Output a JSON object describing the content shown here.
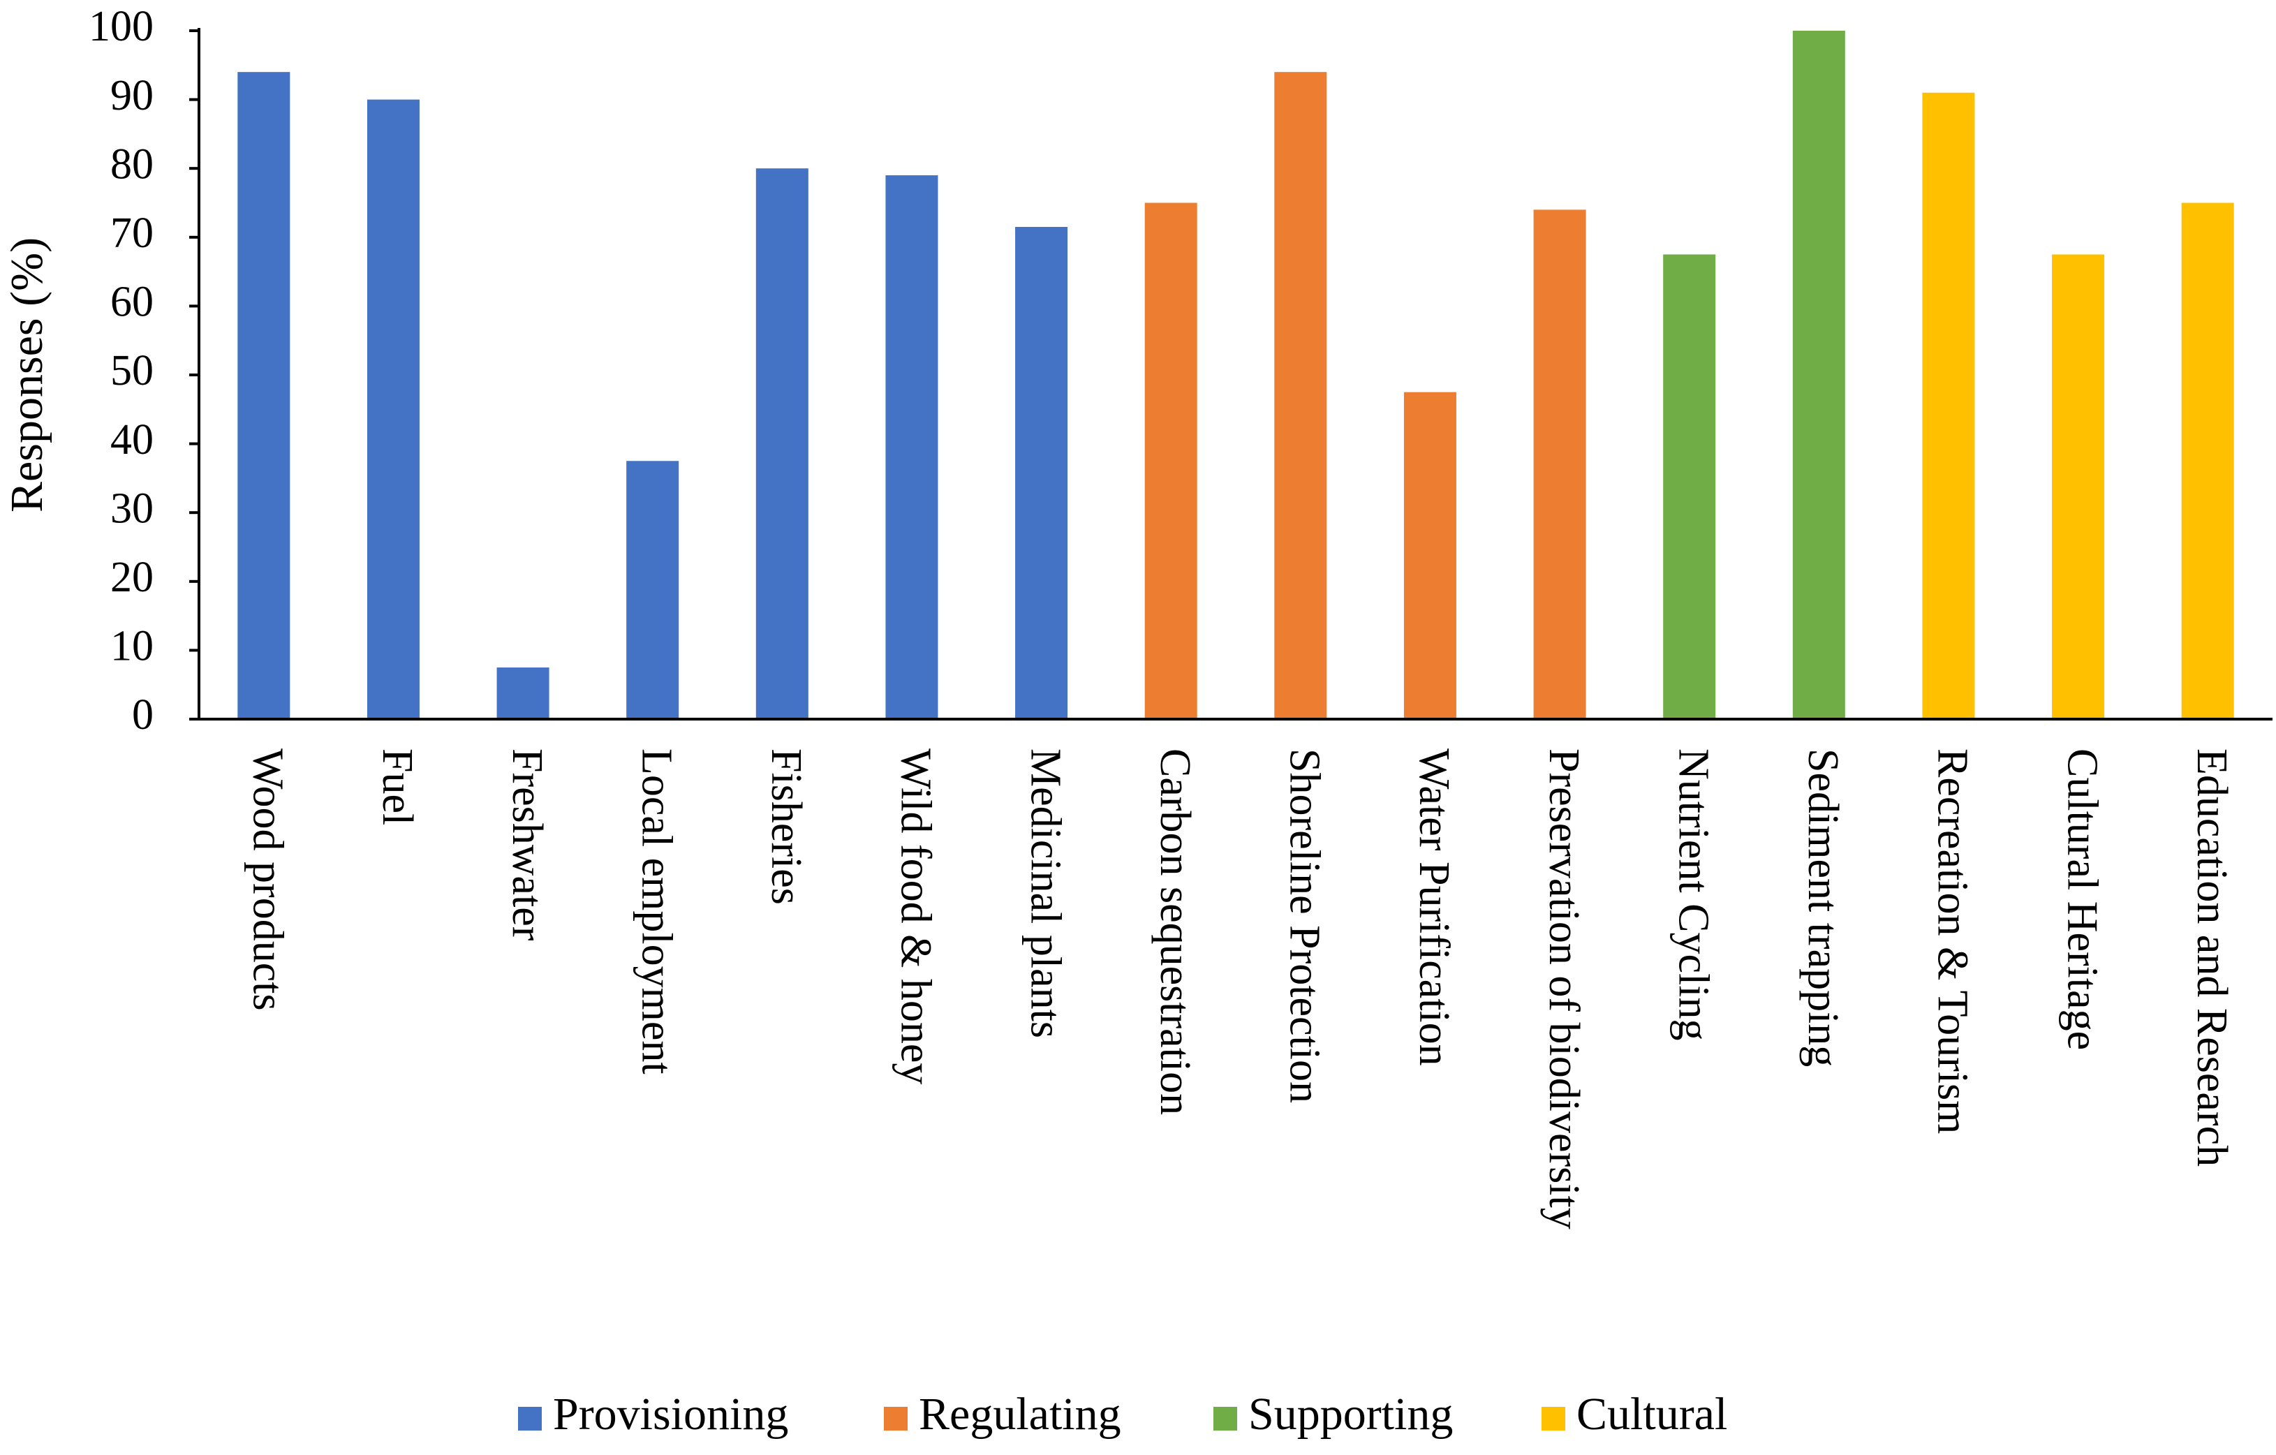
{
  "chart_data": {
    "type": "bar",
    "title": "",
    "xlabel": "",
    "ylabel": "Responses (%)",
    "ylim": [
      0,
      100
    ],
    "yticks": [
      0,
      10,
      20,
      30,
      40,
      50,
      60,
      70,
      80,
      90,
      100
    ],
    "grid": false,
    "legend_position": "bottom",
    "categories": [
      "Wood products",
      "Fuel",
      "Freshwater",
      "Local employment",
      "Fisheries",
      "Wild food & honey",
      "Medicinal plants",
      "Carbon sequestration",
      "Shoreline Protection",
      "Water Purification",
      "Preservation of biodiversity",
      "Nutrient Cycling",
      "Sediment trapping",
      "Recreation & Tourism",
      "Cultural Heritage",
      "Education and Research"
    ],
    "values": [
      94,
      90,
      7.5,
      37.5,
      80,
      79,
      71.5,
      75,
      94,
      47.5,
      74,
      67.5,
      100,
      91,
      67.5,
      75
    ],
    "groups": [
      "Provisioning",
      "Provisioning",
      "Provisioning",
      "Provisioning",
      "Provisioning",
      "Provisioning",
      "Provisioning",
      "Regulating",
      "Regulating",
      "Regulating",
      "Regulating",
      "Supporting",
      "Supporting",
      "Cultural",
      "Cultural",
      "Cultural"
    ],
    "legend": [
      {
        "name": "Provisioning",
        "color": "#4472C4"
      },
      {
        "name": "Regulating",
        "color": "#ED7D31"
      },
      {
        "name": "Supporting",
        "color": "#70AD47"
      },
      {
        "name": "Cultural",
        "color": "#FFC000"
      }
    ]
  }
}
